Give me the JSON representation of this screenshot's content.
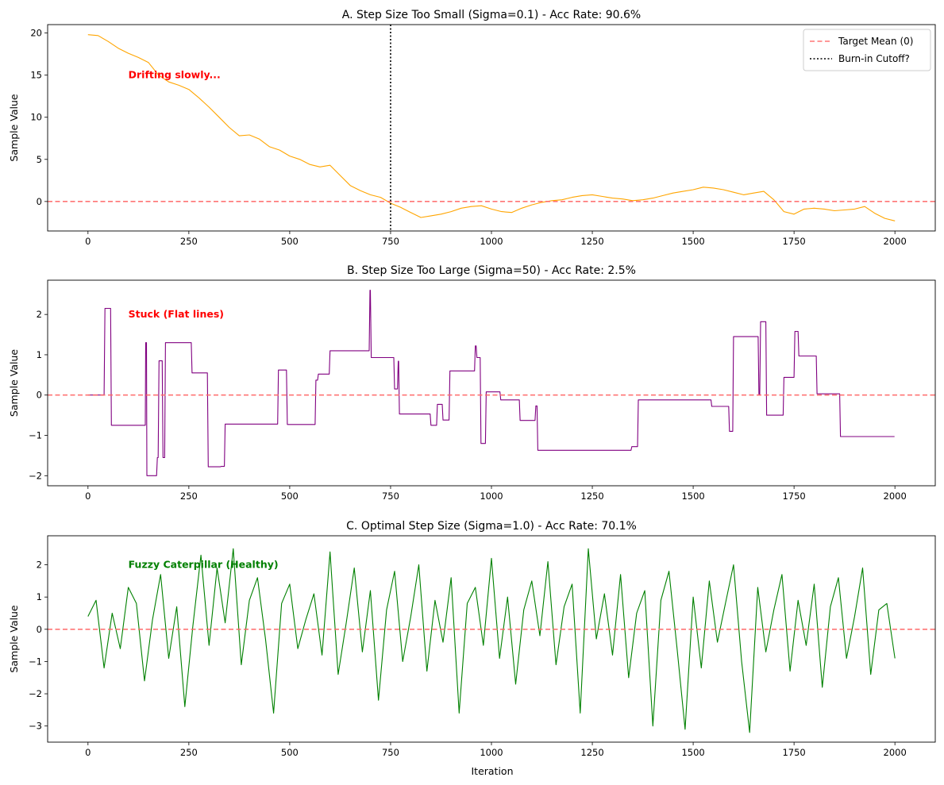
{
  "figure": {
    "xlabel": "Iteration",
    "ylabel": "Sample Value"
  },
  "chart_data": [
    {
      "type": "line",
      "title": "A. Step Size Too Small (Sigma=0.1) - Acc Rate: 90.6%",
      "xlabel": "",
      "ylabel": "Sample Value",
      "xlim": [
        -100,
        2100
      ],
      "ylim": [
        -3.5,
        21
      ],
      "xticks": [
        0,
        250,
        500,
        750,
        1000,
        1250,
        1500,
        1750,
        2000
      ],
      "yticks": [
        0,
        5,
        10,
        15,
        20
      ],
      "x": [
        0,
        25,
        50,
        75,
        100,
        125,
        150,
        175,
        200,
        225,
        250,
        275,
        300,
        325,
        350,
        375,
        400,
        425,
        450,
        475,
        500,
        525,
        550,
        575,
        600,
        625,
        650,
        675,
        700,
        725,
        750,
        775,
        800,
        825,
        850,
        875,
        900,
        925,
        950,
        975,
        1000,
        1025,
        1050,
        1075,
        1100,
        1125,
        1150,
        1175,
        1200,
        1225,
        1250,
        1275,
        1300,
        1325,
        1350,
        1375,
        1400,
        1425,
        1450,
        1475,
        1500,
        1525,
        1550,
        1575,
        1600,
        1625,
        1650,
        1675,
        1700,
        1725,
        1750,
        1775,
        1800,
        1825,
        1850,
        1875,
        1900,
        1925,
        1950,
        1975,
        2000
      ],
      "series": [
        {
          "color": "#ffa500",
          "values": [
            19.8,
            19.7,
            19.0,
            18.2,
            17.6,
            17.1,
            16.5,
            15.0,
            14.2,
            13.8,
            13.3,
            12.3,
            11.2,
            10.0,
            8.8,
            7.8,
            7.9,
            7.4,
            6.5,
            6.1,
            5.4,
            5.0,
            4.4,
            4.1,
            4.3,
            3.1,
            1.9,
            1.3,
            0.8,
            0.5,
            -0.2,
            -0.7,
            -1.3,
            -1.9,
            -1.7,
            -1.5,
            -1.2,
            -0.8,
            -0.6,
            -0.5,
            -0.9,
            -1.2,
            -1.3,
            -0.8,
            -0.4,
            -0.1,
            0.1,
            0.2,
            0.5,
            0.7,
            0.8,
            0.6,
            0.4,
            0.3,
            0.1,
            0.2,
            0.4,
            0.7,
            1.0,
            1.2,
            1.4,
            1.7,
            1.6,
            1.4,
            1.1,
            0.8,
            1.0,
            1.2,
            0.2,
            -1.2,
            -1.5,
            -0.9,
            -0.8,
            -0.9,
            -1.1,
            -1.0,
            -0.9,
            -0.6,
            -1.4,
            -2.0,
            -2.3
          ]
        },
        {
          "name": "Target Mean (0)",
          "type": "hline",
          "y": 0,
          "color": "#ff6666"
        },
        {
          "name": "Burn-in Cutoff?",
          "type": "vline",
          "x": 750,
          "color": "#000000"
        }
      ],
      "annotations": [
        {
          "text": "Drifting slowly...",
          "x": 100,
          "y": 15,
          "color": "#ff0000"
        }
      ],
      "legend": "upper right"
    },
    {
      "type": "line",
      "title": "B. Step Size Too Large (Sigma=50) - Acc Rate: 2.5%",
      "xlabel": "",
      "ylabel": "Sample Value",
      "xlim": [
        -100,
        2100
      ],
      "ylim": [
        -2.25,
        2.85
      ],
      "xticks": [
        0,
        250,
        500,
        750,
        1000,
        1250,
        1500,
        1750,
        2000
      ],
      "yticks": [
        -2,
        -1,
        0,
        1,
        2
      ],
      "step_x": [
        0,
        40,
        42,
        56,
        58,
        142,
        143,
        145,
        146,
        170,
        172,
        174,
        176,
        184,
        186,
        190,
        192,
        256,
        258,
        296,
        298,
        328,
        330,
        338,
        340,
        470,
        472,
        492,
        494,
        563,
        565,
        569,
        571,
        598,
        600,
        697,
        699,
        700,
        702,
        758,
        760,
        767,
        769,
        770,
        772,
        848,
        850,
        864,
        866,
        878,
        880,
        895,
        897,
        958,
        960,
        962,
        964,
        972,
        974,
        985,
        987,
        1021,
        1023,
        1069,
        1071,
        1108,
        1110,
        1113,
        1115,
        1346,
        1348,
        1362,
        1364,
        1544,
        1546,
        1588,
        1590,
        1598,
        1600,
        1661,
        1663,
        1665,
        1667,
        1680,
        1682,
        1723,
        1725,
        1750,
        1752,
        1760,
        1762,
        1805,
        1807,
        1863,
        1865,
        1924,
        1926,
        1999
      ],
      "series": [
        {
          "color": "#800080",
          "values": [
            0.0,
            0.0,
            2.15,
            2.15,
            -0.75,
            -0.75,
            1.3,
            1.3,
            -2.0,
            -2.0,
            -1.55,
            -1.55,
            0.85,
            0.85,
            -1.55,
            -1.55,
            1.3,
            1.3,
            0.55,
            0.55,
            -1.78,
            -1.78,
            -1.77,
            -1.77,
            -0.72,
            -0.72,
            0.62,
            0.62,
            -0.73,
            -0.73,
            0.37,
            0.37,
            0.52,
            0.52,
            1.1,
            1.1,
            2.6,
            2.6,
            0.93,
            0.93,
            0.15,
            0.15,
            0.84,
            0.84,
            -0.47,
            -0.47,
            -0.75,
            -0.75,
            -0.23,
            -0.23,
            -0.62,
            -0.62,
            0.6,
            0.6,
            1.22,
            1.22,
            0.93,
            0.93,
            -1.2,
            -1.2,
            0.08,
            0.08,
            -0.12,
            -0.12,
            -0.63,
            -0.63,
            -0.27,
            -0.27,
            -1.37,
            -1.37,
            -1.28,
            -1.28,
            -0.12,
            -0.12,
            -0.28,
            -0.28,
            -0.9,
            -0.9,
            1.45,
            1.45,
            0.0,
            0.0,
            1.82,
            1.82,
            -0.5,
            -0.5,
            0.44,
            0.44,
            1.58,
            1.58,
            0.97,
            0.97,
            0.03,
            0.03,
            -1.03,
            -1.03,
            -1.03,
            -1.03
          ]
        },
        {
          "type": "hline",
          "y": 0,
          "color": "#ff6666"
        }
      ],
      "annotations": [
        {
          "text": "Stuck (Flat lines)",
          "x": 100,
          "y": 2.0,
          "color": "#ff0000"
        }
      ]
    },
    {
      "type": "line",
      "title": "C. Optimal Step Size (Sigma=1.0) - Acc Rate: 70.1%",
      "xlabel": "Iteration",
      "ylabel": "Sample Value",
      "xlim": [
        -100,
        2100
      ],
      "ylim": [
        -3.5,
        2.9
      ],
      "xticks": [
        0,
        250,
        500,
        750,
        1000,
        1250,
        1500,
        1750,
        2000
      ],
      "yticks": [
        -3,
        -2,
        -1,
        0,
        1,
        2
      ],
      "x": [
        0,
        20,
        40,
        60,
        80,
        100,
        120,
        140,
        160,
        180,
        200,
        220,
        240,
        260,
        280,
        300,
        320,
        340,
        360,
        380,
        400,
        420,
        440,
        460,
        480,
        500,
        520,
        540,
        560,
        580,
        600,
        620,
        640,
        660,
        680,
        700,
        720,
        740,
        760,
        780,
        800,
        820,
        840,
        860,
        880,
        900,
        920,
        940,
        960,
        980,
        1000,
        1020,
        1040,
        1060,
        1080,
        1100,
        1120,
        1140,
        1160,
        1180,
        1200,
        1220,
        1240,
        1260,
        1280,
        1300,
        1320,
        1340,
        1360,
        1380,
        1400,
        1420,
        1440,
        1460,
        1480,
        1500,
        1520,
        1540,
        1560,
        1580,
        1600,
        1620,
        1640,
        1660,
        1680,
        1700,
        1720,
        1740,
        1760,
        1780,
        1800,
        1820,
        1840,
        1860,
        1880,
        1900,
        1920,
        1940,
        1960,
        1980,
        2000
      ],
      "series": [
        {
          "color": "#008000",
          "values": [
            0.4,
            0.9,
            -1.2,
            0.5,
            -0.6,
            1.3,
            0.8,
            -1.6,
            0.3,
            1.7,
            -0.9,
            0.7,
            -2.4,
            0.1,
            2.3,
            -0.5,
            1.9,
            0.2,
            2.5,
            -1.1,
            0.9,
            1.6,
            -0.3,
            -2.6,
            0.8,
            1.4,
            -0.6,
            0.3,
            1.1,
            -0.8,
            2.4,
            -1.4,
            0.2,
            1.9,
            -0.7,
            1.2,
            -2.2,
            0.6,
            1.8,
            -1.0,
            0.4,
            2.0,
            -1.3,
            0.9,
            -0.4,
            1.6,
            -2.6,
            0.8,
            1.3,
            -0.5,
            2.2,
            -0.9,
            1.0,
            -1.7,
            0.6,
            1.5,
            -0.2,
            2.1,
            -1.1,
            0.7,
            1.4,
            -2.6,
            2.5,
            -0.3,
            1.1,
            -0.8,
            1.7,
            -1.5,
            0.5,
            1.2,
            -3.0,
            0.9,
            1.8,
            -0.6,
            -3.1,
            1.0,
            -1.2,
            1.5,
            -0.4,
            0.8,
            2.0,
            -1.0,
            -3.2,
            1.3,
            -0.7,
            0.6,
            1.7,
            -1.3,
            0.9,
            -0.5,
            1.4,
            -1.8,
            0.7,
            1.6,
            -0.9,
            0.4,
            1.9,
            -1.4,
            0.6,
            0.8,
            -0.9
          ]
        },
        {
          "type": "hline",
          "y": 0,
          "color": "#ff6666"
        }
      ],
      "annotations": [
        {
          "text": "Fuzzy Caterpillar (Healthy)",
          "x": 100,
          "y": 2.0,
          "color": "#008000"
        }
      ]
    }
  ]
}
